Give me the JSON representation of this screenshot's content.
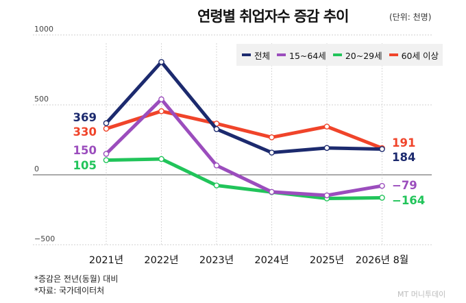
{
  "title": "연령별 취업자수 증감 추이",
  "unit_label": "(단위: 천명)",
  "chart_data": {
    "type": "line",
    "title": "연령별 취업자수 증감 추이",
    "unit": "천명",
    "categories": [
      "2021년",
      "2022년",
      "2023년",
      "2024년",
      "2025년",
      "2026년 8월"
    ],
    "ylim": [
      -500,
      1000
    ],
    "yticks": [
      1000,
      500,
      0,
      -500
    ],
    "ytick_labels": [
      "1000",
      "500",
      "0",
      "−500"
    ],
    "grid": true,
    "legend_position": "top-right",
    "series": [
      {
        "name": "전체",
        "color": "#1c2a6e",
        "values": [
          369,
          807,
          327,
          159,
          192,
          184
        ]
      },
      {
        "name": "15~64세",
        "color": "#9b4dbd",
        "values": [
          150,
          540,
          67,
          -122,
          -147,
          -79
        ]
      },
      {
        "name": "20~29세",
        "color": "#21c45a",
        "values": [
          105,
          113,
          -76,
          -124,
          -169,
          -164
        ]
      },
      {
        "name": "60세 이상",
        "color": "#f0442a",
        "values": [
          330,
          455,
          366,
          268,
          345,
          191
        ]
      }
    ],
    "annotations": [
      {
        "text": "369",
        "side": "left",
        "value": 369,
        "series": "전체"
      },
      {
        "text": "330",
        "side": "left",
        "value": 330,
        "series": "60세 이상"
      },
      {
        "text": "150",
        "side": "left",
        "value": 150,
        "series": "15~64세"
      },
      {
        "text": "105",
        "side": "left",
        "value": 105,
        "series": "20~29세"
      },
      {
        "text": "191",
        "side": "right",
        "value": 191,
        "series": "60세 이상"
      },
      {
        "text": "184",
        "side": "right",
        "value": 184,
        "series": "전체"
      },
      {
        "text": "−79",
        "side": "right",
        "value": -79,
        "series": "15~64세"
      },
      {
        "text": "−164",
        "side": "right",
        "value": -164,
        "series": "20~29세"
      }
    ]
  },
  "notes": [
    "*증감은 전년(동월) 대비",
    "*자료: 국가데이터처"
  ],
  "watermark": "MT 머니투데이"
}
